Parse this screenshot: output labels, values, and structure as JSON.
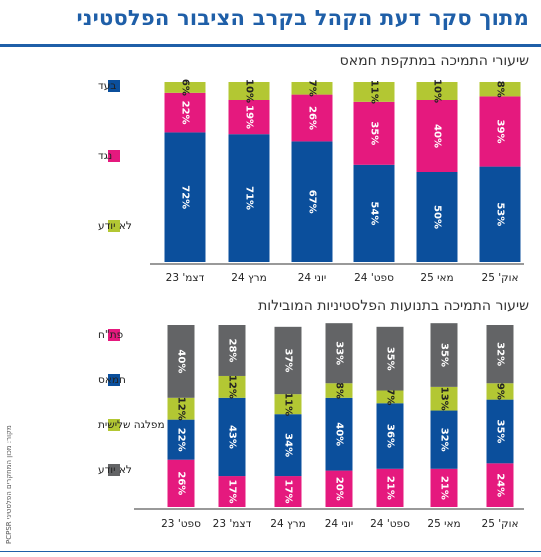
{
  "title": "מתוך סקר דעת הקהל בקרב הציבור הפלסטיני",
  "source": "מקור: מכון המחקרים הפלסטיני PCPSR",
  "colors": {
    "blue": "#0b4f9c",
    "pink": "#e5197e",
    "lime": "#b3c733",
    "gray": "#636466",
    "title": "#1f5fa8"
  },
  "chart_data": [
    {
      "type": "bar",
      "stacked": true,
      "title": "שיעורי התמיכה במתקפת חמאס",
      "categories": [
        "אוק' 25",
        "מאי 25",
        "ספט' 24",
        "יוני 24",
        "מרץ 24",
        "דצמ' 23"
      ],
      "ylim": [
        0,
        100
      ],
      "series": [
        {
          "name": "בעד",
          "color": "#0b4f9c",
          "label_color": "#ffffff",
          "values": [
            53,
            50,
            54,
            67,
            71,
            72
          ]
        },
        {
          "name": "נגד",
          "color": "#e5197e",
          "label_color": "#ffffff",
          "values": [
            39,
            40,
            35,
            26,
            19,
            22
          ]
        },
        {
          "name": "לא יודע",
          "color": "#b3c733",
          "label_color": "#222222",
          "values": [
            8,
            10,
            11,
            7,
            10,
            6
          ]
        }
      ],
      "legend": "right"
    },
    {
      "type": "bar",
      "stacked": true,
      "title": "שיעור התמיכה בתנועות הפלסטיניות המובילות",
      "categories": [
        "אוק' 25",
        "מאי 25",
        "ספט' 24",
        "יוני 24",
        "מרץ 24",
        "דצמ' 23",
        "ספט' 23"
      ],
      "ylim": [
        0,
        100
      ],
      "series": [
        {
          "name": "פת\"ח",
          "color": "#e5197e",
          "label_color": "#ffffff",
          "values": [
            24,
            21,
            21,
            20,
            17,
            17,
            26
          ]
        },
        {
          "name": "חמאס",
          "color": "#0b4f9c",
          "label_color": "#ffffff",
          "values": [
            35,
            32,
            36,
            40,
            34,
            43,
            22
          ]
        },
        {
          "name": "מפלגה שלישית",
          "color": "#b3c733",
          "label_color": "#222222",
          "values": [
            9,
            13,
            7,
            8,
            11,
            12,
            12
          ]
        },
        {
          "name": "לא יודע",
          "color": "#636466",
          "label_color": "#ffffff",
          "values": [
            32,
            35,
            35,
            33,
            37,
            28,
            40
          ]
        }
      ],
      "legend": "right"
    }
  ]
}
